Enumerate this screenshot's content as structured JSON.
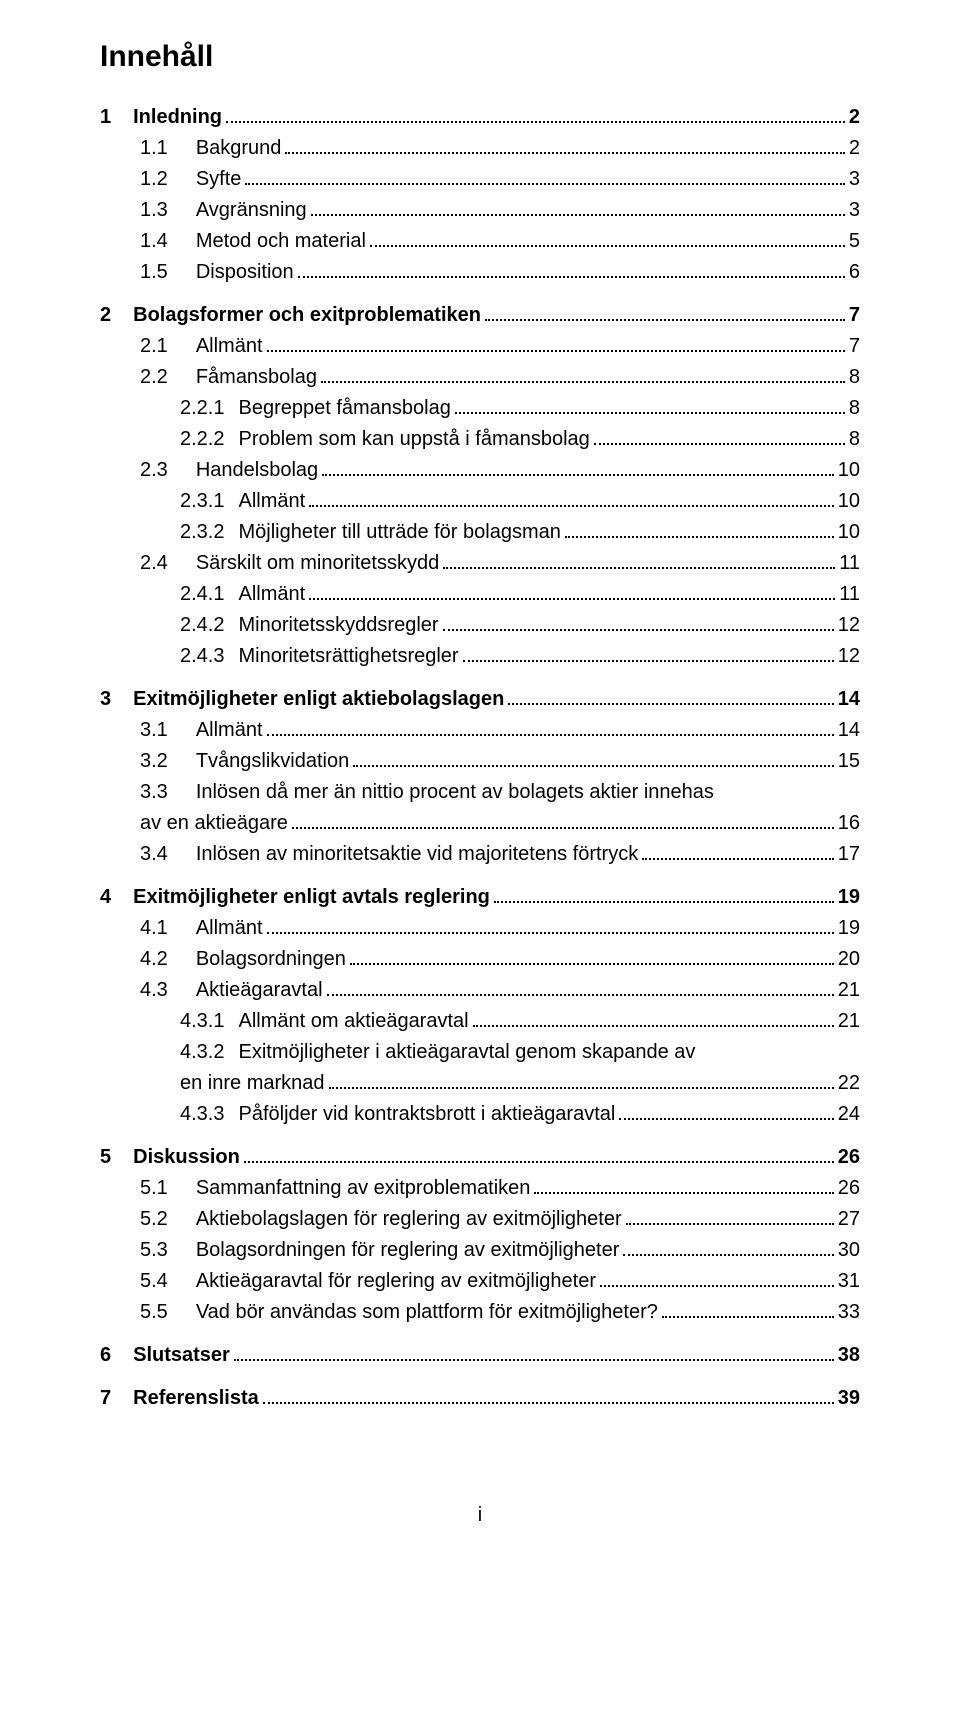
{
  "title": "Innehåll",
  "footer_page": "i",
  "colors": {
    "text": "#000000",
    "background": "#ffffff"
  },
  "typography": {
    "body_fontsize_pt": 15,
    "title_fontsize_pt": 22,
    "font_family": "Arial"
  },
  "entries": [
    {
      "level": 1,
      "num": "1",
      "label": "Inledning",
      "page": "2"
    },
    {
      "level": 2,
      "num": "1.1",
      "label": "Bakgrund",
      "page": "2"
    },
    {
      "level": 2,
      "num": "1.2",
      "label": "Syfte",
      "page": "3"
    },
    {
      "level": 2,
      "num": "1.3",
      "label": "Avgränsning",
      "page": "3"
    },
    {
      "level": 2,
      "num": "1.4",
      "label": "Metod och material",
      "page": "5"
    },
    {
      "level": 2,
      "num": "1.5",
      "label": "Disposition",
      "page": "6"
    },
    {
      "level": 1,
      "num": "2",
      "label": "Bolagsformer och exitproblematiken",
      "page": "7"
    },
    {
      "level": 2,
      "num": "2.1",
      "label": "Allmänt",
      "page": "7"
    },
    {
      "level": 2,
      "num": "2.2",
      "label": "Fåmansbolag",
      "page": "8"
    },
    {
      "level": 3,
      "num": "2.2.1",
      "label": "Begreppet fåmansbolag",
      "page": "8"
    },
    {
      "level": 3,
      "num": "2.2.2",
      "label": "Problem som kan uppstå i fåmansbolag",
      "page": "8"
    },
    {
      "level": 2,
      "num": "2.3",
      "label": "Handelsbolag",
      "page": "10"
    },
    {
      "level": 3,
      "num": "2.3.1",
      "label": "Allmänt",
      "page": "10"
    },
    {
      "level": 3,
      "num": "2.3.2",
      "label": "Möjligheter till utträde för bolagsman",
      "page": "10"
    },
    {
      "level": 2,
      "num": "2.4",
      "label": "Särskilt om minoritetsskydd",
      "page": "11"
    },
    {
      "level": 3,
      "num": "2.4.1",
      "label": "Allmänt",
      "page": "11"
    },
    {
      "level": 3,
      "num": "2.4.2",
      "label": "Minoritetsskyddsregler",
      "page": "12"
    },
    {
      "level": 3,
      "num": "2.4.3",
      "label": "Minoritetsrättighetsregler",
      "page": "12"
    },
    {
      "level": 1,
      "num": "3",
      "label": "Exitmöjligheter enligt aktiebolagslagen",
      "page": "14"
    },
    {
      "level": 2,
      "num": "3.1",
      "label": "Allmänt",
      "page": "14"
    },
    {
      "level": 2,
      "num": "3.2",
      "label": "Tvångslikvidation",
      "page": "15"
    },
    {
      "level": 2,
      "num": "3.3",
      "label": "Inlösen då mer än nittio procent av bolagets aktier innehas",
      "label_cont": "av en aktieägare",
      "page": "16",
      "multiline": true
    },
    {
      "level": 2,
      "num": "3.4",
      "label": "Inlösen av minoritetsaktie vid majoritetens förtryck",
      "page": "17"
    },
    {
      "level": 1,
      "num": "4",
      "label": "Exitmöjligheter enligt avtals reglering",
      "page": "19"
    },
    {
      "level": 2,
      "num": "4.1",
      "label": "Allmänt",
      "page": "19"
    },
    {
      "level": 2,
      "num": "4.2",
      "label": "Bolagsordningen",
      "page": "20"
    },
    {
      "level": 2,
      "num": "4.3",
      "label": "Aktieägaravtal",
      "page": "21"
    },
    {
      "level": 3,
      "num": "4.3.1",
      "label": "Allmänt om aktieägaravtal",
      "page": "21"
    },
    {
      "level": 3,
      "num": "4.3.2",
      "label": "Exitmöjligheter i aktieägaravtal genom skapande av",
      "label_cont": "en inre marknad",
      "page": "22",
      "multiline": true
    },
    {
      "level": 3,
      "num": "4.3.3",
      "label": "Påföljder vid kontraktsbrott i aktieägaravtal",
      "page": "24"
    },
    {
      "level": 1,
      "num": "5",
      "label": "Diskussion",
      "page": "26"
    },
    {
      "level": 2,
      "num": "5.1",
      "label": "Sammanfattning av exitproblematiken",
      "page": "26"
    },
    {
      "level": 2,
      "num": "5.2",
      "label": "Aktiebolagslagen för reglering av exitmöjligheter",
      "page": "27"
    },
    {
      "level": 2,
      "num": "5.3",
      "label": "Bolagsordningen för reglering av exitmöjligheter",
      "page": "30"
    },
    {
      "level": 2,
      "num": "5.4",
      "label": "Aktieägaravtal för reglering av exitmöjligheter",
      "page": "31"
    },
    {
      "level": 2,
      "num": "5.5",
      "label": "Vad bör användas som plattform för exitmöjligheter?",
      "page": "33"
    },
    {
      "level": 1,
      "num": "6",
      "label": "Slutsatser",
      "page": "38"
    },
    {
      "level": 1,
      "num": "7",
      "label": "Referenslista",
      "page": "39"
    }
  ]
}
